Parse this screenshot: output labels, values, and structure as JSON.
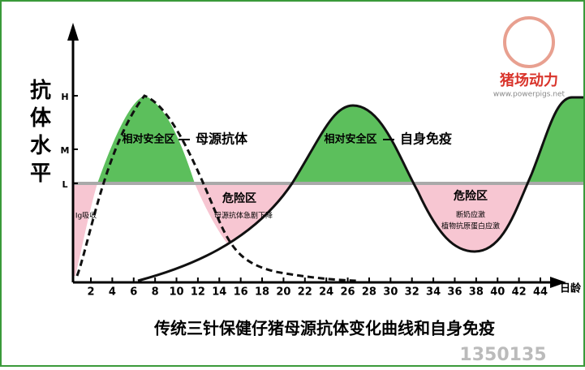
{
  "y_axis": {
    "title": "抗体水平",
    "levels": [
      "H",
      "M",
      "L"
    ]
  },
  "x_axis": {
    "labels": [
      "2",
      "4",
      "6",
      "8",
      "10",
      "12",
      "14",
      "16",
      "18",
      "20",
      "22",
      "24",
      "26",
      "28",
      "30",
      "32",
      "34",
      "36",
      "38",
      "40",
      "42",
      "44"
    ],
    "unit": "日龄"
  },
  "annotations": {
    "safe_zone_1": "相对安全区",
    "maternal": "母源抗体",
    "safe_zone_2": "相对安全区",
    "own": "自身免疫",
    "danger_1": "危险区",
    "danger_1_note": "母源抗体急剧下降",
    "danger_2": "危险区",
    "danger_2_note_1": "断奶应激",
    "danger_2_note_2": "植物抗原蛋白应激",
    "ig": "Ig吸收"
  },
  "title": "传统三针保健仔猪母源抗体变化曲线和自身免疫",
  "logo": {
    "name": "猪场动力",
    "url": "www.powerpigs.net"
  },
  "watermark": "1350135"
}
